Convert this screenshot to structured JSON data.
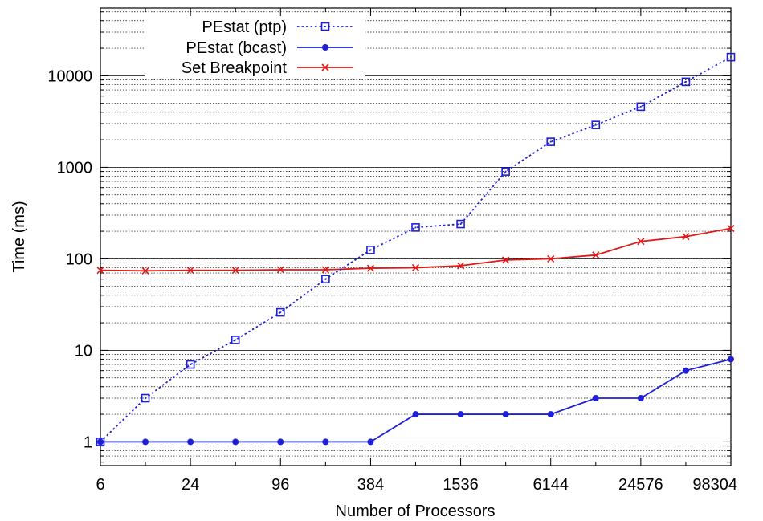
{
  "chart_data": {
    "type": "line",
    "xlabel": "Number of Processors",
    "ylabel": "Time (ms)",
    "x_scale": "log2",
    "y_scale": "log10",
    "xlim": [
      6,
      98304
    ],
    "ylim": [
      0.55,
      55000
    ],
    "x_ticks": [
      6,
      24,
      96,
      384,
      1536,
      6144,
      24576,
      98304
    ],
    "y_ticks": [
      1,
      10,
      100,
      1000,
      10000
    ],
    "grid": "horizontal",
    "legend_position": "top-left",
    "x": [
      6,
      12,
      24,
      48,
      96,
      192,
      384,
      768,
      1536,
      3072,
      6144,
      12288,
      24576,
      49152,
      98304
    ],
    "series": [
      {
        "name": "PEstat (ptp)",
        "color": "#1f1fd6",
        "line_style": "dotted",
        "marker": "open-square",
        "values": [
          1,
          3,
          7,
          13,
          26,
          60,
          125,
          220,
          240,
          900,
          1900,
          2900,
          4600,
          8600,
          16000
        ]
      },
      {
        "name": "PEstat (bcast)",
        "color": "#1f1fd6",
        "line_style": "solid",
        "marker": "filled-circle",
        "values": [
          1,
          1,
          1,
          1,
          1,
          1,
          1,
          2,
          2,
          2,
          2,
          3,
          3,
          6,
          8
        ]
      },
      {
        "name": "Set Breakpoint",
        "color": "#e01818",
        "line_style": "solid",
        "marker": "cross",
        "values": [
          75,
          74,
          75,
          75,
          76,
          76,
          79,
          80,
          84,
          97,
          100,
          110,
          155,
          175,
          215
        ]
      }
    ]
  }
}
